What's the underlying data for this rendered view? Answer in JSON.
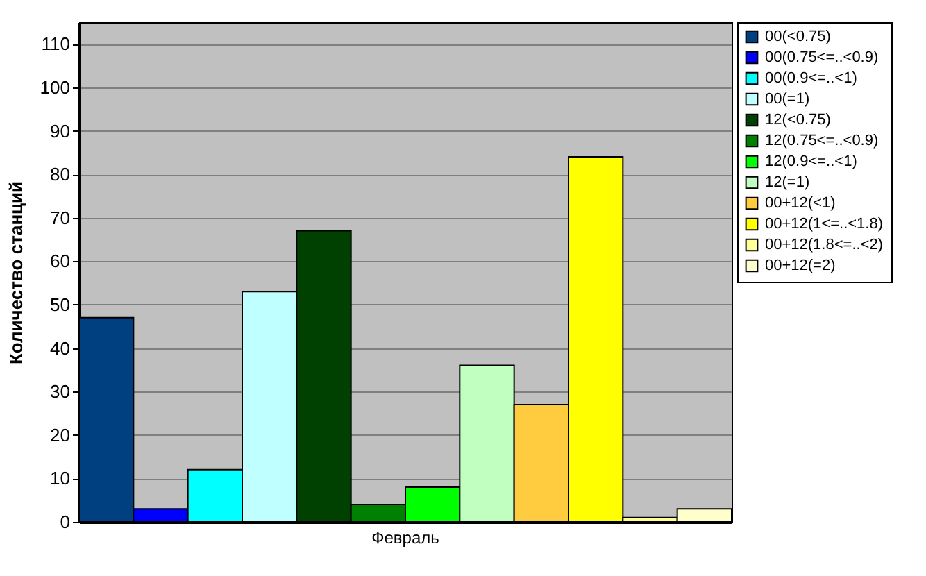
{
  "chart_data": {
    "type": "bar",
    "ylabel": "Количество станций",
    "categories": [
      "Февраль"
    ],
    "series": [
      {
        "name": "00(<0.75)",
        "color": "#004080",
        "values": [
          47
        ]
      },
      {
        "name": "00(0.75<=..<0.9)",
        "color": "#0000ff",
        "values": [
          3
        ]
      },
      {
        "name": "00(0.9<=..<1)",
        "color": "#00ffff",
        "values": [
          12
        ]
      },
      {
        "name": "00(=1)",
        "color": "#c0ffff",
        "values": [
          53
        ]
      },
      {
        "name": "12(<0.75)",
        "color": "#004000",
        "values": [
          67
        ]
      },
      {
        "name": "12(0.75<=..<0.9)",
        "color": "#008000",
        "values": [
          4
        ]
      },
      {
        "name": "12(0.9<=..<1)",
        "color": "#00ff00",
        "values": [
          8
        ]
      },
      {
        "name": "12(=1)",
        "color": "#c0ffc0",
        "values": [
          36
        ]
      },
      {
        "name": "00+12(<1)",
        "color": "#ffcc40",
        "values": [
          27
        ]
      },
      {
        "name": "00+12(1<=..<1.8)",
        "color": "#ffff00",
        "values": [
          84
        ]
      },
      {
        "name": "00+12(1.8<=..<2)",
        "color": "#ffff99",
        "values": [
          1
        ]
      },
      {
        "name": "00+12(=2)",
        "color": "#ffffcc",
        "values": [
          3
        ]
      }
    ],
    "ylim": [
      0,
      115
    ],
    "yticks": [
      0,
      10,
      20,
      30,
      40,
      50,
      60,
      70,
      80,
      90,
      100,
      110
    ],
    "grid": "y",
    "legend": "top right"
  }
}
